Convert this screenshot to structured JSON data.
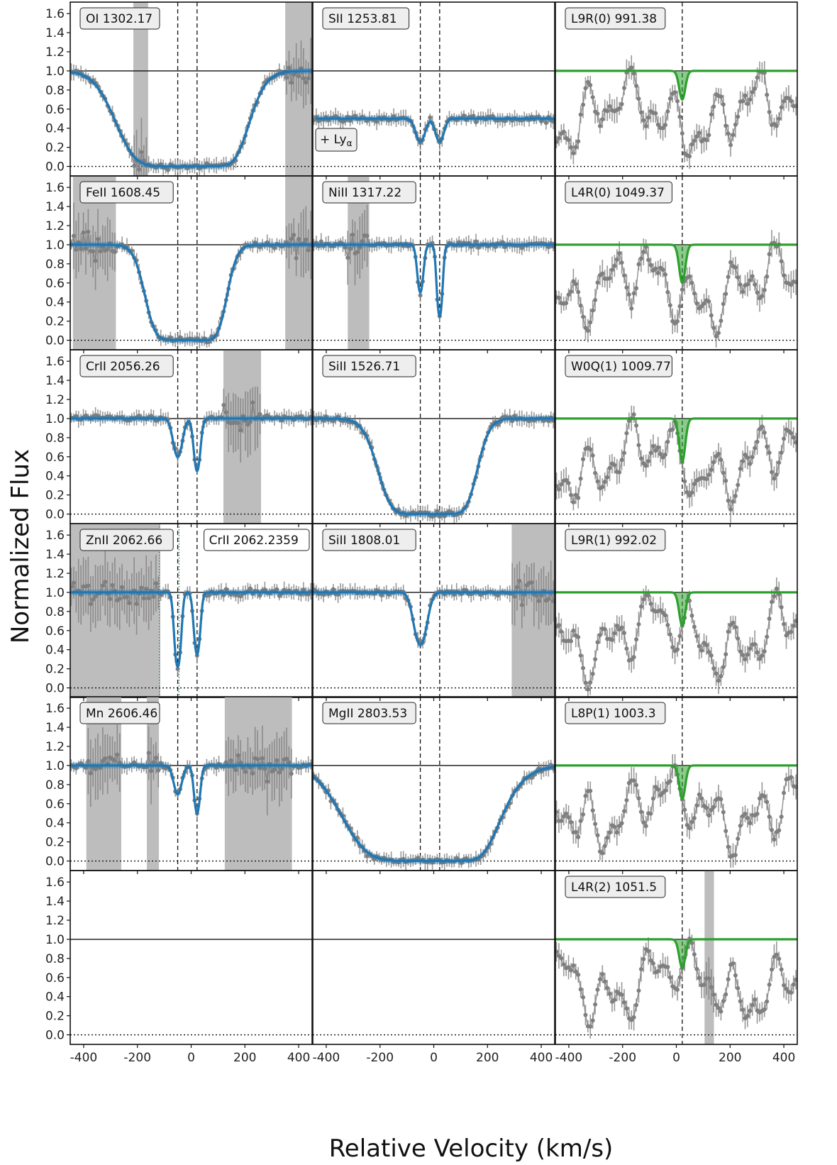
{
  "chart_data": {
    "type": "line",
    "ylabel": "Normalized Flux",
    "xlabel": "Relative Velocity (km/s)",
    "xlim": [
      -450,
      450
    ],
    "ylim": [
      -0.1,
      1.72
    ],
    "xticks": [
      -400,
      -200,
      0,
      200,
      400
    ],
    "xtick_labels": [
      "-400",
      "-200",
      "0",
      "200",
      "400"
    ],
    "yticks": [
      0.0,
      0.2,
      0.4,
      0.6,
      0.8,
      1.0,
      1.2,
      1.4,
      1.6
    ],
    "ytick_labels": [
      "0.0",
      "0.2",
      "0.4",
      "0.6",
      "0.8",
      "1.0",
      "1.2",
      "1.4",
      "1.6"
    ],
    "component_velocities": [
      -50,
      22
    ],
    "h2_component_velocity": 22,
    "colors": {
      "data": "#7f7f7f",
      "metal_model": "#1f77b4",
      "h2_model": "#2ca02c",
      "masked_region": "#bdbdbd",
      "blend_label": "#1b7a55"
    },
    "grid": false,
    "panels": [
      {
        "row": 0,
        "col": 0,
        "label": "OI 1302.17",
        "model": "metal",
        "components": [
          {
            "v": -50,
            "depth": 1.0,
            "width": 95
          },
          {
            "v": 22,
            "depth": 1.0,
            "width": 70
          }
        ],
        "masks": [
          [
            -215,
            -160
          ],
          [
            350,
            450
          ]
        ],
        "continuum": 1.0
      },
      {
        "row": 0,
        "col": 1,
        "label": "SII 1253.81",
        "sublabel": "+ Ly",
        "sublabel_sub": "α",
        "model": "metal",
        "components": [
          {
            "v": -50,
            "depth": 0.48,
            "width": 22
          },
          {
            "v": 22,
            "depth": 0.48,
            "width": 20
          }
        ],
        "masks": [],
        "continuum": 0.5
      },
      {
        "row": 0,
        "col": 2,
        "label": "L9R(0) 991.38",
        "model": "h2",
        "h2_depth": 0.3,
        "masks": []
      },
      {
        "row": 1,
        "col": 0,
        "label": "FeII 1608.45",
        "model": "metal",
        "components": [
          {
            "v": -50,
            "depth": 1.0,
            "width": 50
          },
          {
            "v": 22,
            "depth": 1.0,
            "width": 45
          }
        ],
        "masks": [
          [
            -440,
            -280
          ],
          [
            350,
            450
          ]
        ],
        "continuum": 1.0
      },
      {
        "row": 1,
        "col": 1,
        "label": "NiII 1317.22",
        "model": "metal",
        "components": [
          {
            "v": -50,
            "depth": 0.5,
            "width": 14
          },
          {
            "v": 22,
            "depth": 0.75,
            "width": 12
          }
        ],
        "masks": [
          [
            -320,
            -240
          ]
        ],
        "continuum": 1.0
      },
      {
        "row": 1,
        "col": 2,
        "label": "L4R(0) 1049.37",
        "model": "h2",
        "h2_depth": 0.4,
        "masks": []
      },
      {
        "row": 2,
        "col": 0,
        "label": "CrII 2056.26",
        "model": "metal",
        "components": [
          {
            "v": -50,
            "depth": 0.4,
            "width": 22
          },
          {
            "v": 22,
            "depth": 0.55,
            "width": 15
          }
        ],
        "masks": [
          [
            120,
            260
          ]
        ],
        "continuum": 1.0
      },
      {
        "row": 2,
        "col": 1,
        "label": "SiII 1526.71",
        "model": "metal",
        "components": [
          {
            "v": -50,
            "depth": 1.0,
            "width": 65
          },
          {
            "v": 22,
            "depth": 1.0,
            "width": 55
          }
        ],
        "masks": [],
        "continuum": 1.0
      },
      {
        "row": 2,
        "col": 2,
        "label": "W0Q(1) 1009.77",
        "model": "h2",
        "h2_depth": 0.45,
        "masks": []
      },
      {
        "row": 3,
        "col": 0,
        "label": "ZnII 2062.66",
        "blend_label": "CrII 2062.2359",
        "model": "metal",
        "components": [
          {
            "v": -50,
            "depth": 0.78,
            "width": 14
          },
          {
            "v": 22,
            "depth": 0.65,
            "width": 14
          }
        ],
        "masks": [
          [
            -450,
            -115
          ]
        ],
        "continuum": 1.0
      },
      {
        "row": 3,
        "col": 1,
        "label": "SiII 1808.01",
        "model": "metal",
        "components": [
          {
            "v": -50,
            "depth": 0.55,
            "width": 30
          }
        ],
        "masks": [
          [
            290,
            450
          ]
        ],
        "continuum": 1.0
      },
      {
        "row": 3,
        "col": 2,
        "label": "L9R(1) 992.02",
        "model": "h2",
        "h2_depth": 0.35,
        "masks": []
      },
      {
        "row": 4,
        "col": 0,
        "label": "Mn 2606.46",
        "model": "metal",
        "components": [
          {
            "v": -50,
            "depth": 0.3,
            "width": 20
          },
          {
            "v": 22,
            "depth": 0.5,
            "width": 14
          }
        ],
        "masks": [
          [
            -390,
            -260
          ],
          [
            -165,
            -120
          ],
          [
            125,
            375
          ]
        ],
        "continuum": 1.0
      },
      {
        "row": 4,
        "col": 1,
        "label": "MgII 2803.53",
        "model": "metal",
        "components": [
          {
            "v": -50,
            "depth": 1.0,
            "width": 120
          },
          {
            "v": 22,
            "depth": 1.0,
            "width": 70
          }
        ],
        "masks": [],
        "continuum": 1.0
      },
      {
        "row": 4,
        "col": 2,
        "label": "L8P(1) 1003.3",
        "model": "h2",
        "h2_depth": 0.35,
        "masks": []
      },
      {
        "row": 5,
        "col": 0,
        "label": "",
        "model": "none",
        "masks": []
      },
      {
        "row": 5,
        "col": 1,
        "label": "",
        "model": "none",
        "masks": []
      },
      {
        "row": 5,
        "col": 2,
        "label": "L4R(2) 1051.5",
        "model": "h2",
        "h2_depth": 0.3,
        "masks": [
          [
            105,
            140
          ]
        ]
      }
    ]
  }
}
